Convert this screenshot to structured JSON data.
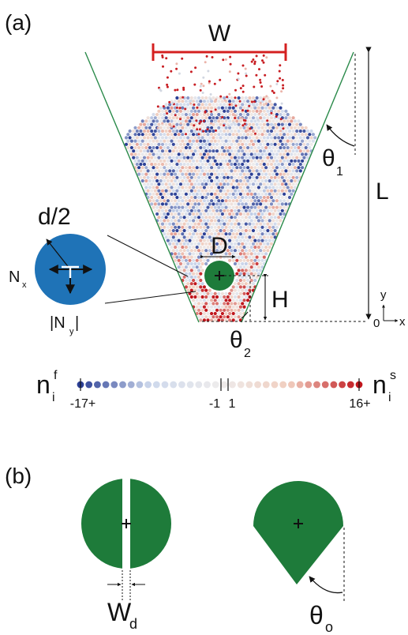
{
  "panel_a": {
    "panel_label": "(a)",
    "width_label": "W",
    "length_label": "L",
    "obstacle_diameter_label": "D",
    "height_label": "H",
    "angle1_main": "θ",
    "angle1_sub": "1",
    "angle2_main": "θ",
    "angle2_sub": "2",
    "axis_x": "x",
    "axis_y": "y",
    "origin": "0",
    "inset": {
      "radius_label": "d/2",
      "force_x_main": "N",
      "force_x_sub": "x",
      "force_y_main": "|N",
      "force_y_sub": "y",
      "force_y_close": "|"
    },
    "colorbar": {
      "left_main": "n",
      "left_sub": "i",
      "left_sup": "f",
      "right_main": "n",
      "right_sub": "i",
      "right_sup": "s",
      "ticks": [
        "-17+",
        "-1",
        "1",
        "16+"
      ]
    }
  },
  "panel_b": {
    "panel_label": "(b)",
    "gap_label_main": "W",
    "gap_label_sub": "d",
    "angle_main": "θ",
    "angle_sub": "o"
  },
  "colors": {
    "obstacle": "#1e7b3a",
    "inset_disk": "#1f73b7",
    "wall": "#2a8a4a",
    "width_bar": "#d42020",
    "blue": "#2b3f95",
    "red": "#c0161c"
  }
}
